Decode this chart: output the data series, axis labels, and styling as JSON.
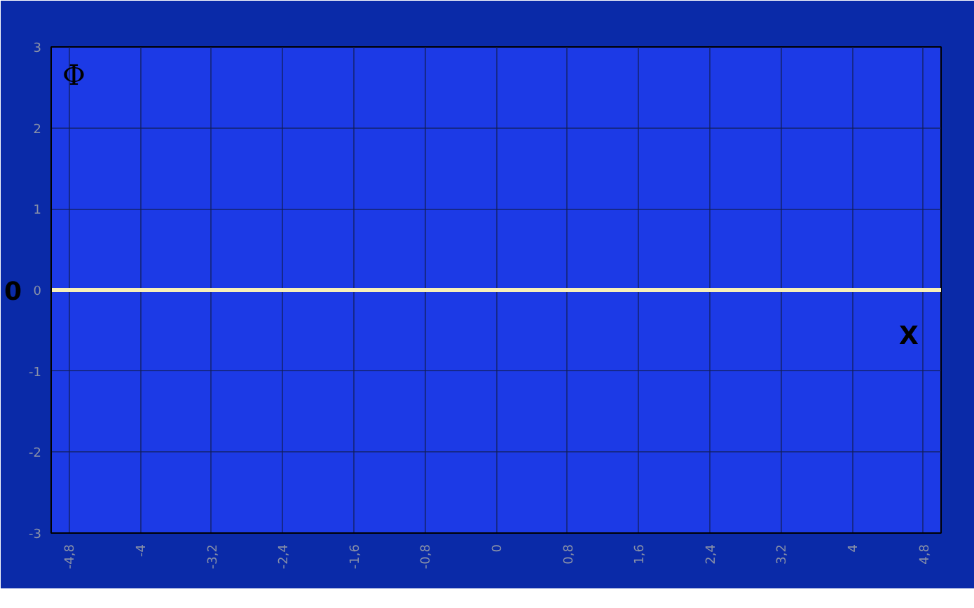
{
  "chart_data": {
    "type": "line",
    "xlabel": "X",
    "ylabel": "Φ",
    "x": [
      -5,
      5
    ],
    "series": [
      {
        "color": "#f8f0b8",
        "values": [
          0,
          0
        ]
      }
    ],
    "xlim": [
      -5,
      5
    ],
    "ylim": [
      -3,
      3
    ],
    "xticks": [
      {
        "value": -4.8,
        "label": "-4,8"
      },
      {
        "value": -4,
        "label": "-4"
      },
      {
        "value": -3.2,
        "label": "-3,2"
      },
      {
        "value": -2.4,
        "label": "-2,4"
      },
      {
        "value": -1.6,
        "label": "-1,6"
      },
      {
        "value": -0.8,
        "label": "-0,8"
      },
      {
        "value": 0,
        "label": "0"
      },
      {
        "value": 0.8,
        "label": "0,8"
      },
      {
        "value": 1.6,
        "label": "1,6"
      },
      {
        "value": 2.4,
        "label": "2,4"
      },
      {
        "value": 3.2,
        "label": "3,2"
      },
      {
        "value": 4,
        "label": "4"
      },
      {
        "value": 4.8,
        "label": "4,8"
      }
    ],
    "yticks": [
      -3,
      -2,
      -1,
      0,
      1,
      2,
      3
    ],
    "annotations": [
      "0"
    ],
    "grid": true,
    "line_style": "solid",
    "marker": "none"
  }
}
